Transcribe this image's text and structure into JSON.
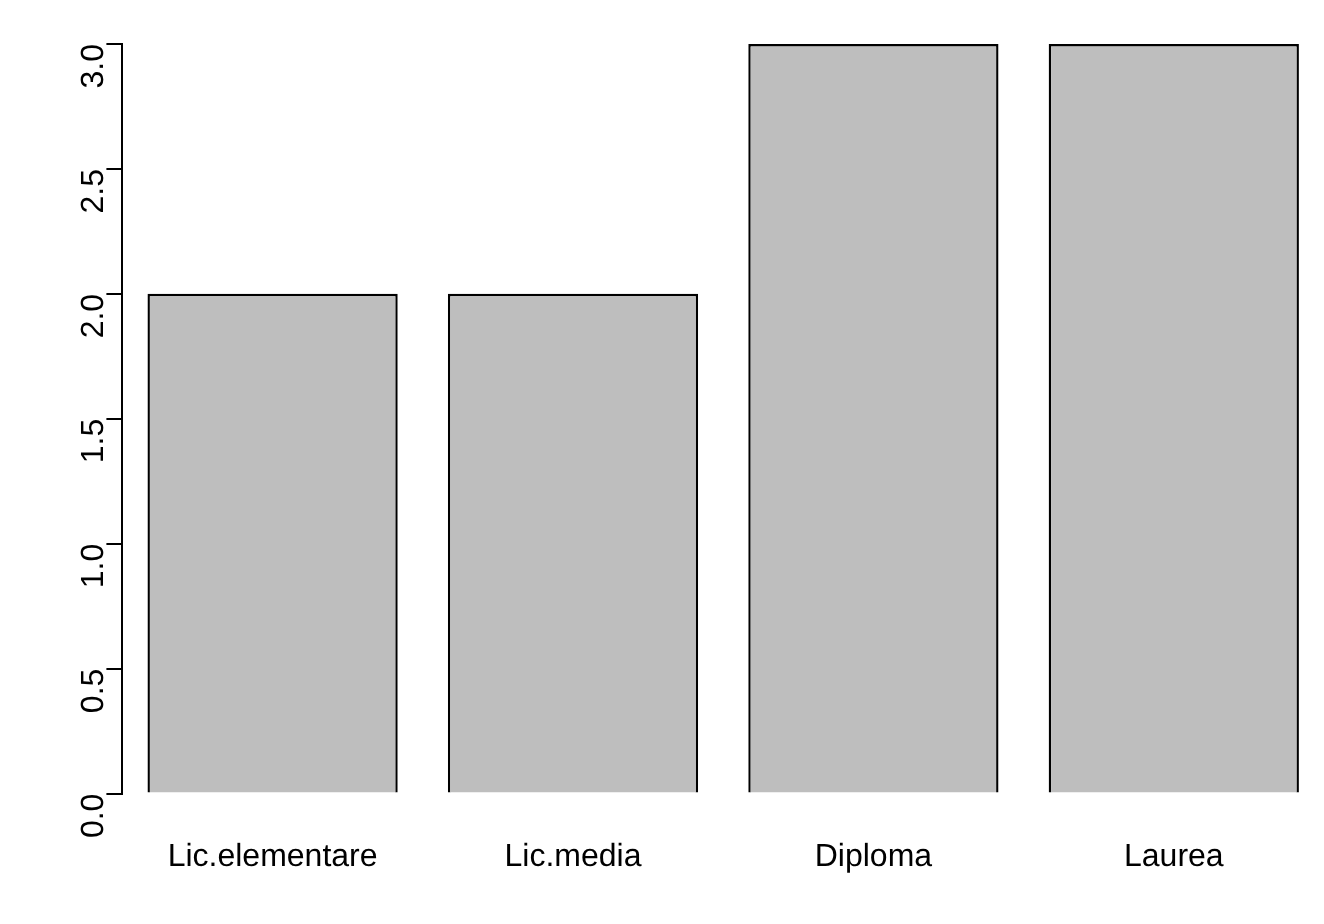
{
  "chart_data": {
    "type": "bar",
    "categories": [
      "Lic.elementare",
      "Lic.media",
      "Diploma",
      "Laurea"
    ],
    "values": [
      2,
      2,
      3,
      3
    ],
    "color": "#bebebe",
    "ylim": [
      0,
      3
    ],
    "yticks": [
      {
        "value": 0,
        "label": "0.0"
      },
      {
        "value": 0.5,
        "label": "0.5"
      },
      {
        "value": 1,
        "label": "1.0"
      },
      {
        "value": 1.5,
        "label": "1.5"
      },
      {
        "value": 2,
        "label": "2.0"
      },
      {
        "value": 2.5,
        "label": "2.5"
      },
      {
        "value": 3,
        "label": "3.0"
      }
    ],
    "grid": false
  }
}
